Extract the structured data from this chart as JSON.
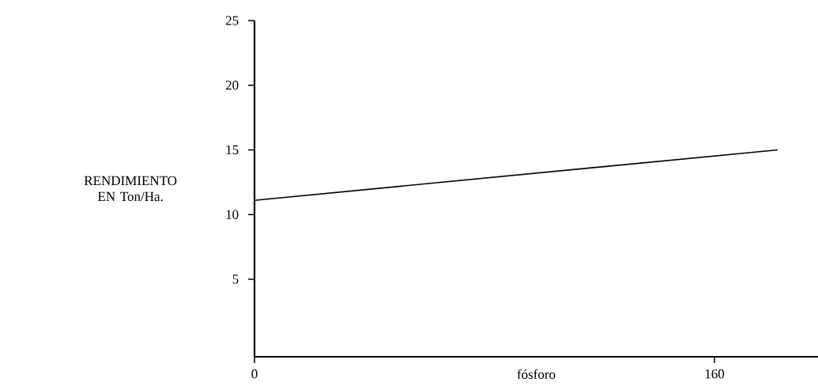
{
  "chart_data": {
    "type": "line",
    "xlabel": "fósforo",
    "ylabel": "RENDIMIENTO EN Ton/Ha.",
    "x": [
      0,
      182
    ],
    "values": [
      11.1,
      15.0
    ],
    "color": "#000000",
    "xlim": [
      0,
      196
    ],
    "xticks": [
      0,
      160
    ],
    "ylim": [
      -1,
      25
    ],
    "yticks": [
      5,
      10,
      15,
      20,
      25
    ],
    "grid": false,
    "marker": "none",
    "line_style": "solid"
  }
}
